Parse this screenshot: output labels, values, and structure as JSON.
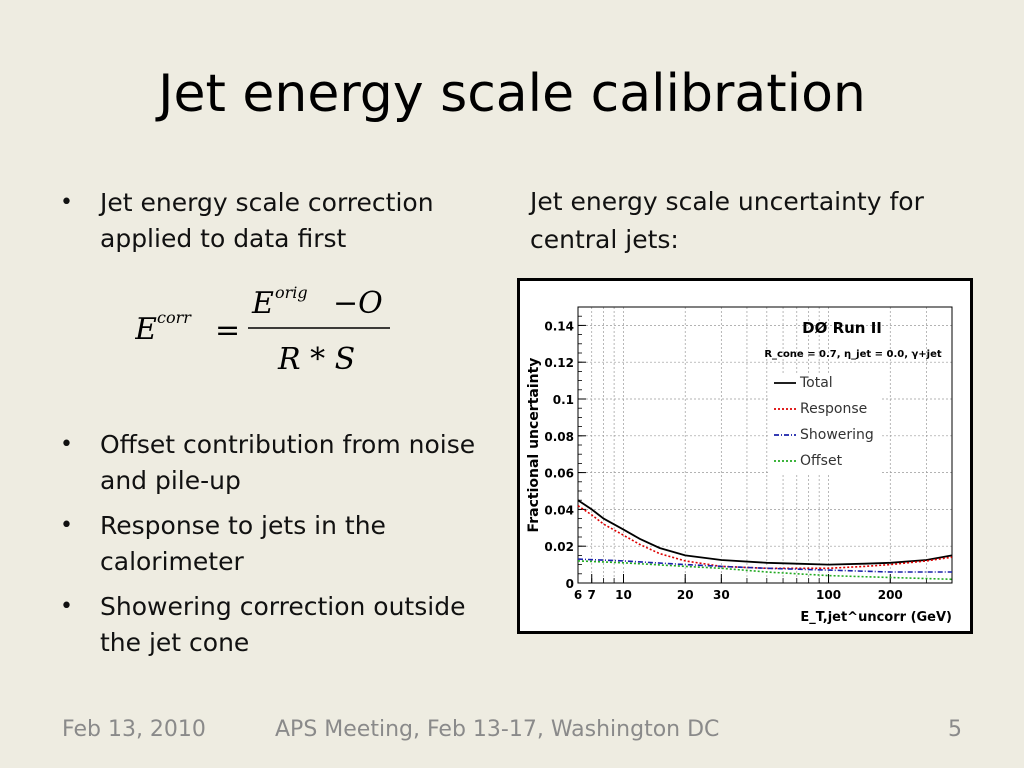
{
  "slide": {
    "title": "Jet energy scale calibration",
    "bullets": [
      "Jet energy scale correction applied to data first",
      "Offset contribution from noise and pile-up",
      "Response to jets in the calorimeter",
      "Showering correction outside the jet cone"
    ],
    "bullet_glyph": "•",
    "formula": {
      "lhs": "E",
      "lhs_sup": "corr",
      "equals": "=",
      "numerator": "E",
      "numerator_sup": "orig",
      "minus_term": "−O",
      "denominator": "R * S"
    },
    "caption": "Jet energy scale uncertainty for central jets:"
  },
  "footer": {
    "date": "Feb 13, 2010",
    "meeting": "APS Meeting, Feb 13-17, Washington DC",
    "page": "5"
  },
  "chart_data": {
    "type": "line",
    "title": "DØ Run II",
    "subtitle": "R_cone = 0.7,  η_jet = 0.0,  γ+jet",
    "xlabel": "E_T,jet^uncorr  (GeV)",
    "ylabel": "Fractional uncertainty",
    "xscale": "log",
    "xlim": [
      6,
      400
    ],
    "ylim": [
      0,
      0.15
    ],
    "xticks": [
      6,
      7,
      10,
      20,
      30,
      100,
      200
    ],
    "xtick_labels": [
      "6",
      "7",
      "10",
      "20",
      "30",
      "100",
      "200"
    ],
    "yticks": [
      0,
      0.02,
      0.04,
      0.06,
      0.08,
      0.1,
      0.12,
      0.14
    ],
    "ytick_labels": [
      "0",
      "0.02",
      "0.04",
      "0.06",
      "0.08",
      "0.1",
      "0.12",
      "0.14"
    ],
    "grid": true,
    "legend_position": "top-right",
    "series": [
      {
        "name": "Total",
        "color": "#000000",
        "style": "solid",
        "x": [
          6,
          7,
          8,
          10,
          12,
          15,
          20,
          30,
          50,
          70,
          100,
          150,
          200,
          300,
          400
        ],
        "y": [
          0.045,
          0.04,
          0.035,
          0.029,
          0.024,
          0.019,
          0.015,
          0.0125,
          0.011,
          0.0105,
          0.01,
          0.0105,
          0.011,
          0.0125,
          0.015
        ]
      },
      {
        "name": "Response",
        "color": "#dd0000",
        "style": "dotted",
        "x": [
          6,
          7,
          8,
          10,
          12,
          15,
          20,
          30,
          50,
          70,
          100,
          150,
          200,
          300,
          400
        ],
        "y": [
          0.042,
          0.037,
          0.032,
          0.026,
          0.021,
          0.016,
          0.012,
          0.009,
          0.008,
          0.008,
          0.008,
          0.009,
          0.01,
          0.012,
          0.014
        ]
      },
      {
        "name": "Showering",
        "color": "#1a22aa",
        "style": "dashdot",
        "x": [
          6,
          10,
          20,
          30,
          50,
          100,
          200,
          400
        ],
        "y": [
          0.013,
          0.012,
          0.01,
          0.009,
          0.008,
          0.007,
          0.006,
          0.006
        ]
      },
      {
        "name": "Offset",
        "color": "#22aa22",
        "style": "dotted",
        "x": [
          6,
          10,
          20,
          30,
          50,
          100,
          200,
          400
        ],
        "y": [
          0.012,
          0.011,
          0.009,
          0.008,
          0.006,
          0.004,
          0.003,
          0.002
        ]
      }
    ]
  }
}
